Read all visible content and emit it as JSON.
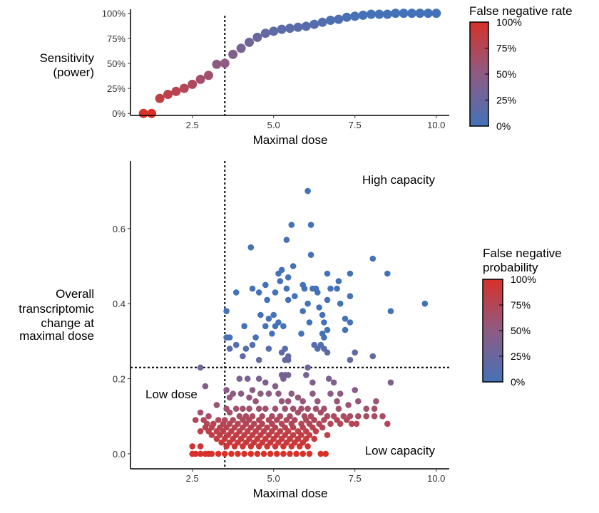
{
  "colors": {
    "low": "#4472B8",
    "high": "#D7312A",
    "mid": "#8E5B83",
    "axis": "#000000",
    "ref_line": "#000000"
  },
  "chart_data": [
    {
      "type": "scatter",
      "panel": "top",
      "xlabel": "Maximal dose",
      "ylabel": [
        "Sensitivity",
        "(power)"
      ],
      "xlim": [
        0.6,
        10.4
      ],
      "ylim": [
        -0.02,
        1.04
      ],
      "x_ticks": [
        2.5,
        5.0,
        7.5,
        10.0
      ],
      "x_tick_labels": [
        "2.5",
        "5.0",
        "7.5",
        "10.0"
      ],
      "y_ticks": [
        0,
        0.25,
        0.5,
        0.75,
        1.0
      ],
      "y_tick_labels": [
        "0%",
        "25%",
        "50%",
        "75%",
        "100%"
      ],
      "vline_x": 3.5,
      "legend": {
        "title": "False negative rate",
        "labels": [
          "100%",
          "75%",
          "50%",
          "25%",
          "0%"
        ],
        "placement": "right"
      },
      "color_by": "1 - y",
      "points": [
        [
          1.0,
          0.0
        ],
        [
          1.25,
          0.0
        ],
        [
          1.5,
          0.15
        ],
        [
          1.75,
          0.19
        ],
        [
          2.0,
          0.22
        ],
        [
          2.25,
          0.25
        ],
        [
          2.5,
          0.29
        ],
        [
          2.75,
          0.34
        ],
        [
          3.0,
          0.38
        ],
        [
          3.25,
          0.49
        ],
        [
          3.5,
          0.5
        ],
        [
          3.75,
          0.59
        ],
        [
          4.0,
          0.65
        ],
        [
          4.25,
          0.71
        ],
        [
          4.5,
          0.76
        ],
        [
          4.75,
          0.8
        ],
        [
          5.0,
          0.82
        ],
        [
          5.25,
          0.84
        ],
        [
          5.5,
          0.85
        ],
        [
          5.75,
          0.86
        ],
        [
          6.0,
          0.87
        ],
        [
          6.25,
          0.89
        ],
        [
          6.5,
          0.91
        ],
        [
          6.75,
          0.93
        ],
        [
          7.0,
          0.94
        ],
        [
          7.25,
          0.96
        ],
        [
          7.5,
          0.97
        ],
        [
          7.75,
          0.98
        ],
        [
          8.0,
          0.99
        ],
        [
          8.25,
          0.99
        ],
        [
          8.5,
          0.99
        ],
        [
          8.75,
          1.0
        ],
        [
          9.0,
          1.0
        ],
        [
          9.25,
          1.0
        ],
        [
          9.5,
          1.0
        ],
        [
          9.75,
          1.0
        ],
        [
          10.0,
          1.0
        ]
      ]
    },
    {
      "type": "scatter",
      "panel": "bottom",
      "xlabel": "Maximal dose",
      "ylabel": [
        "Overall",
        "transcriptomic",
        "change at",
        "maximal dose"
      ],
      "xlim": [
        0.6,
        10.4
      ],
      "ylim": [
        -0.04,
        0.78
      ],
      "x_ticks": [
        2.5,
        5.0,
        7.5,
        10.0
      ],
      "x_tick_labels": [
        "2.5",
        "5.0",
        "7.5",
        "10.0"
      ],
      "y_ticks": [
        0.0,
        0.2,
        0.4,
        0.6
      ],
      "y_tick_labels": [
        "0.0",
        "0.2",
        "0.4",
        "0.6"
      ],
      "vline_x": 3.5,
      "hline_y": 0.23,
      "annotations": {
        "top_right": "High capacity",
        "bottom_left": "Low dose",
        "bottom_right": "Low capacity"
      },
      "legend": {
        "title": [
          "False negative",
          "probability"
        ],
        "labels": [
          "100%",
          "75%",
          "50%",
          "25%",
          "0%"
        ],
        "placement": "right"
      },
      "points": [
        [
          6.05,
          0.7
        ],
        [
          5.55,
          0.61
        ],
        [
          6.15,
          0.61
        ],
        [
          5.4,
          0.57
        ],
        [
          4.3,
          0.55
        ],
        [
          6.15,
          0.53
        ],
        [
          8.05,
          0.52
        ],
        [
          5.6,
          0.5
        ],
        [
          5.25,
          0.49
        ],
        [
          5.15,
          0.48
        ],
        [
          6.65,
          0.48
        ],
        [
          5.45,
          0.47
        ],
        [
          7.0,
          0.46
        ],
        [
          5.2,
          0.46
        ],
        [
          8.5,
          0.48
        ],
        [
          5.9,
          0.45
        ],
        [
          6.3,
          0.44
        ],
        [
          5.95,
          0.44
        ],
        [
          5.4,
          0.44
        ],
        [
          4.75,
          0.45
        ],
        [
          7.35,
          0.48
        ],
        [
          4.35,
          0.44
        ],
        [
          6.35,
          0.43
        ],
        [
          5.05,
          0.43
        ],
        [
          4.55,
          0.43
        ],
        [
          5.65,
          0.42
        ],
        [
          7.35,
          0.42
        ],
        [
          6.95,
          0.44
        ],
        [
          6.75,
          0.44
        ],
        [
          6.2,
          0.44
        ],
        [
          5.45,
          0.41
        ],
        [
          6.65,
          0.41
        ],
        [
          4.8,
          0.41
        ],
        [
          6.05,
          0.4
        ],
        [
          3.85,
          0.43
        ],
        [
          7.05,
          0.4
        ],
        [
          6.4,
          0.39
        ],
        [
          9.65,
          0.4
        ],
        [
          3.55,
          0.38
        ],
        [
          5.9,
          0.38
        ],
        [
          6.5,
          0.37
        ],
        [
          4.6,
          0.37
        ],
        [
          5.0,
          0.37
        ],
        [
          7.2,
          0.36
        ],
        [
          8.6,
          0.38
        ],
        [
          5.15,
          0.35
        ],
        [
          4.85,
          0.36
        ],
        [
          6.1,
          0.35
        ],
        [
          5.05,
          0.34
        ],
        [
          4.75,
          0.34
        ],
        [
          6.55,
          0.35
        ],
        [
          4.1,
          0.34
        ],
        [
          5.3,
          0.34
        ],
        [
          7.35,
          0.35
        ],
        [
          7.2,
          0.33
        ],
        [
          6.65,
          0.33
        ],
        [
          5.85,
          0.32
        ],
        [
          6.5,
          0.32
        ],
        [
          3.55,
          0.31
        ],
        [
          3.65,
          0.31
        ],
        [
          4.95,
          0.32
        ],
        [
          6.55,
          0.31
        ],
        [
          4.45,
          0.31
        ],
        [
          6.25,
          0.29
        ],
        [
          6.45,
          0.29
        ],
        [
          6.55,
          0.28
        ],
        [
          6.35,
          0.28
        ],
        [
          3.85,
          0.29
        ],
        [
          4.35,
          0.29
        ],
        [
          4.15,
          0.28
        ],
        [
          4.85,
          0.28
        ],
        [
          5.35,
          0.28
        ],
        [
          3.65,
          0.28
        ],
        [
          5.25,
          0.27
        ],
        [
          4.05,
          0.26
        ],
        [
          5.45,
          0.26
        ],
        [
          5.35,
          0.25
        ],
        [
          5.45,
          0.25
        ],
        [
          4.55,
          0.25
        ],
        [
          6.65,
          0.27
        ],
        [
          7.5,
          0.27
        ],
        [
          8.05,
          0.26
        ],
        [
          7.35,
          0.25
        ],
        [
          2.75,
          0.23
        ],
        [
          6.05,
          0.23
        ],
        [
          2.9,
          0.18
        ],
        [
          3.95,
          0.2
        ],
        [
          4.2,
          0.2
        ],
        [
          4.55,
          0.2
        ],
        [
          4.75,
          0.19
        ],
        [
          5.05,
          0.18
        ],
        [
          5.25,
          0.21
        ],
        [
          5.35,
          0.21
        ],
        [
          5.45,
          0.21
        ],
        [
          5.3,
          0.2
        ],
        [
          6.0,
          0.21
        ],
        [
          6.2,
          0.19
        ],
        [
          6.7,
          0.2
        ],
        [
          6.85,
          0.19
        ],
        [
          8.6,
          0.19
        ],
        [
          3.55,
          0.17
        ],
        [
          3.75,
          0.16
        ],
        [
          4.0,
          0.16
        ],
        [
          4.35,
          0.17
        ],
        [
          4.6,
          0.16
        ],
        [
          4.85,
          0.16
        ],
        [
          5.15,
          0.16
        ],
        [
          5.55,
          0.16
        ],
        [
          5.75,
          0.15
        ],
        [
          6.2,
          0.16
        ],
        [
          6.75,
          0.16
        ],
        [
          7.05,
          0.16
        ],
        [
          7.5,
          0.17
        ],
        [
          3.65,
          0.15
        ],
        [
          4.25,
          0.15
        ],
        [
          4.45,
          0.14
        ],
        [
          5.25,
          0.14
        ],
        [
          5.45,
          0.14
        ],
        [
          5.9,
          0.14
        ],
        [
          6.35,
          0.14
        ],
        [
          6.95,
          0.14
        ],
        [
          7.3,
          0.13
        ],
        [
          7.6,
          0.14
        ],
        [
          8.15,
          0.14
        ],
        [
          3.25,
          0.13
        ],
        [
          3.55,
          0.12
        ],
        [
          3.85,
          0.12
        ],
        [
          4.05,
          0.12
        ],
        [
          4.25,
          0.12
        ],
        [
          4.55,
          0.12
        ],
        [
          4.75,
          0.12
        ],
        [
          5.05,
          0.12
        ],
        [
          5.35,
          0.12
        ],
        [
          5.6,
          0.12
        ],
        [
          5.85,
          0.12
        ],
        [
          6.05,
          0.12
        ],
        [
          6.3,
          0.12
        ],
        [
          6.55,
          0.12
        ],
        [
          7.0,
          0.12
        ],
        [
          7.85,
          0.12
        ],
        [
          8.1,
          0.12
        ],
        [
          3.65,
          0.11
        ],
        [
          3.95,
          0.1
        ],
        [
          4.15,
          0.1
        ],
        [
          4.35,
          0.1
        ],
        [
          4.65,
          0.1
        ],
        [
          4.95,
          0.1
        ],
        [
          5.2,
          0.1
        ],
        [
          5.5,
          0.1
        ],
        [
          5.75,
          0.11
        ],
        [
          5.95,
          0.1
        ],
        [
          6.15,
          0.1
        ],
        [
          6.45,
          0.11
        ],
        [
          6.65,
          0.1
        ],
        [
          6.85,
          0.1
        ],
        [
          7.15,
          0.1
        ],
        [
          7.35,
          0.1
        ],
        [
          7.6,
          0.1
        ],
        [
          7.85,
          0.1
        ],
        [
          8.1,
          0.1
        ],
        [
          8.35,
          0.1
        ],
        [
          2.75,
          0.11
        ],
        [
          3.0,
          0.1
        ],
        [
          3.3,
          0.09
        ],
        [
          3.5,
          0.09
        ],
        [
          3.75,
          0.09
        ],
        [
          4.05,
          0.09
        ],
        [
          4.25,
          0.09
        ],
        [
          4.55,
          0.09
        ],
        [
          4.85,
          0.09
        ],
        [
          5.1,
          0.09
        ],
        [
          5.4,
          0.09
        ],
        [
          5.65,
          0.09
        ],
        [
          6.0,
          0.09
        ],
        [
          6.25,
          0.09
        ],
        [
          6.55,
          0.09
        ],
        [
          6.95,
          0.09
        ],
        [
          7.25,
          0.09
        ],
        [
          7.55,
          0.08
        ],
        [
          8.5,
          0.08
        ],
        [
          2.6,
          0.09
        ],
        [
          2.85,
          0.09
        ],
        [
          2.95,
          0.08
        ],
        [
          3.15,
          0.08
        ],
        [
          3.45,
          0.08
        ],
        [
          3.65,
          0.08
        ],
        [
          3.9,
          0.08
        ],
        [
          4.15,
          0.08
        ],
        [
          4.4,
          0.08
        ],
        [
          4.65,
          0.08
        ],
        [
          4.95,
          0.08
        ],
        [
          5.25,
          0.08
        ],
        [
          5.55,
          0.08
        ],
        [
          5.85,
          0.08
        ],
        [
          6.1,
          0.08
        ],
        [
          6.4,
          0.08
        ],
        [
          6.75,
          0.08
        ],
        [
          7.05,
          0.08
        ],
        [
          7.4,
          0.08
        ],
        [
          2.9,
          0.07
        ],
        [
          3.1,
          0.07
        ],
        [
          3.35,
          0.07
        ],
        [
          3.55,
          0.07
        ],
        [
          3.8,
          0.07
        ],
        [
          4.05,
          0.07
        ],
        [
          4.3,
          0.07
        ],
        [
          4.55,
          0.07
        ],
        [
          4.8,
          0.07
        ],
        [
          5.05,
          0.07
        ],
        [
          5.35,
          0.07
        ],
        [
          5.6,
          0.07
        ],
        [
          5.9,
          0.07
        ],
        [
          6.2,
          0.07
        ],
        [
          6.5,
          0.07
        ],
        [
          2.75,
          0.06
        ],
        [
          3.0,
          0.06
        ],
        [
          3.25,
          0.06
        ],
        [
          3.45,
          0.06
        ],
        [
          3.7,
          0.06
        ],
        [
          3.95,
          0.06
        ],
        [
          4.2,
          0.06
        ],
        [
          4.45,
          0.06
        ],
        [
          4.7,
          0.06
        ],
        [
          4.95,
          0.06
        ],
        [
          5.2,
          0.06
        ],
        [
          5.45,
          0.06
        ],
        [
          5.75,
          0.06
        ],
        [
          6.0,
          0.06
        ],
        [
          6.3,
          0.06
        ],
        [
          6.65,
          0.05
        ],
        [
          3.1,
          0.05
        ],
        [
          3.35,
          0.05
        ],
        [
          3.6,
          0.05
        ],
        [
          3.85,
          0.05
        ],
        [
          4.1,
          0.05
        ],
        [
          4.35,
          0.05
        ],
        [
          4.6,
          0.05
        ],
        [
          4.85,
          0.05
        ],
        [
          5.1,
          0.05
        ],
        [
          5.35,
          0.05
        ],
        [
          5.6,
          0.05
        ],
        [
          5.85,
          0.05
        ],
        [
          6.1,
          0.05
        ],
        [
          3.25,
          0.04
        ],
        [
          3.5,
          0.04
        ],
        [
          3.75,
          0.04
        ],
        [
          4.0,
          0.04
        ],
        [
          4.25,
          0.04
        ],
        [
          4.5,
          0.04
        ],
        [
          4.75,
          0.04
        ],
        [
          5.0,
          0.04
        ],
        [
          5.25,
          0.04
        ],
        [
          5.5,
          0.04
        ],
        [
          5.75,
          0.04
        ],
        [
          6.0,
          0.04
        ],
        [
          6.25,
          0.04
        ],
        [
          3.4,
          0.03
        ],
        [
          3.65,
          0.03
        ],
        [
          3.9,
          0.03
        ],
        [
          4.15,
          0.03
        ],
        [
          4.4,
          0.03
        ],
        [
          4.65,
          0.03
        ],
        [
          4.9,
          0.03
        ],
        [
          5.15,
          0.03
        ],
        [
          5.4,
          0.03
        ],
        [
          5.65,
          0.03
        ],
        [
          5.9,
          0.03
        ],
        [
          2.5,
          0.02
        ],
        [
          2.75,
          0.02
        ],
        [
          3.55,
          0.02
        ],
        [
          3.8,
          0.02
        ],
        [
          4.05,
          0.02
        ],
        [
          4.3,
          0.02
        ],
        [
          4.55,
          0.02
        ],
        [
          4.8,
          0.02
        ],
        [
          5.05,
          0.02
        ],
        [
          5.3,
          0.02
        ],
        [
          5.55,
          0.02
        ],
        [
          5.8,
          0.02
        ],
        [
          6.05,
          0.02
        ],
        [
          2.6,
          0.0
        ],
        [
          2.75,
          0.0
        ],
        [
          2.9,
          0.0
        ],
        [
          3.1,
          0.0
        ],
        [
          3.3,
          0.0
        ],
        [
          3.5,
          0.0
        ],
        [
          3.7,
          0.0
        ],
        [
          3.9,
          0.0
        ],
        [
          4.1,
          0.0
        ],
        [
          4.3,
          0.0
        ],
        [
          4.5,
          0.0
        ],
        [
          4.7,
          0.0
        ],
        [
          4.9,
          0.0
        ],
        [
          5.1,
          0.0
        ],
        [
          5.3,
          0.0
        ],
        [
          5.5,
          0.0
        ],
        [
          5.7,
          0.0
        ],
        [
          5.9,
          0.0
        ],
        [
          6.1,
          0.0
        ],
        [
          6.45,
          0.0
        ],
        [
          6.6,
          0.0
        ],
        [
          2.5,
          0.0
        ],
        [
          3.0,
          0.0
        ]
      ]
    }
  ]
}
